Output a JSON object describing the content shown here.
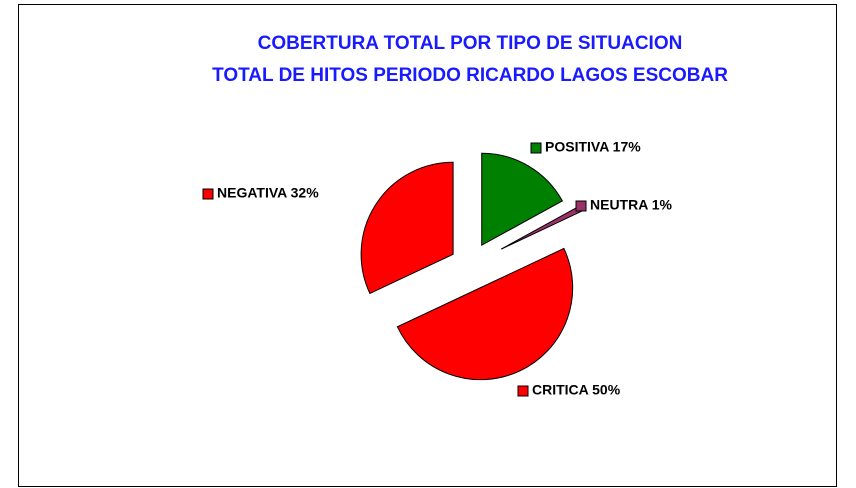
{
  "chart_data": {
    "type": "pie",
    "title": [
      "COBERTURA TOTAL POR TIPO DE SITUACION",
      "TOTAL DE HITOS PERIODO RICARDO LAGOS ESCOBAR"
    ],
    "values": [
      17,
      1,
      50,
      32
    ],
    "value_labels": [
      "POSITIVA 17%",
      "NEUTRA 1%",
      "CRITICA 50%",
      "NEGATIVA 32%"
    ],
    "colors": [
      "#008000",
      "#993366",
      "#ff0000",
      "#ff0000"
    ]
  }
}
